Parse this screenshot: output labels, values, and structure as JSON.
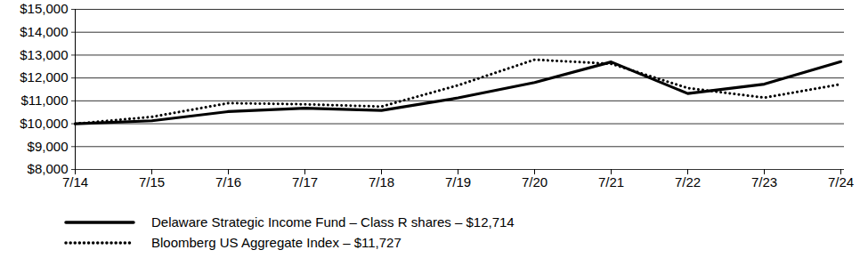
{
  "chart_data": {
    "type": "line",
    "categories": [
      "7/14",
      "7/15",
      "7/16",
      "7/17",
      "7/18",
      "7/19",
      "7/20",
      "7/21",
      "7/22",
      "7/23",
      "7/24"
    ],
    "series": [
      {
        "name": "Delaware Strategic Income Fund – Class R shares – $12,714",
        "color": "#000000",
        "line_style": "solid",
        "values": [
          10000,
          10130,
          10530,
          10680,
          10580,
          11130,
          11800,
          12700,
          11320,
          11730,
          12714
        ]
      },
      {
        "name": "Bloomberg US Aggregate Index – $11,727",
        "color": "#000000",
        "line_style": "dotted",
        "values": [
          10000,
          10300,
          10900,
          10850,
          10750,
          11680,
          12800,
          12620,
          11560,
          11140,
          11727
        ]
      }
    ],
    "ylim": [
      8000,
      15000
    ],
    "yticks": [
      {
        "value": 8000,
        "label": "$8,000"
      },
      {
        "value": 9000,
        "label": "$9,000"
      },
      {
        "value": 10000,
        "label": "$10,000"
      },
      {
        "value": 11000,
        "label": "$11,000"
      },
      {
        "value": 12000,
        "label": "$12,000"
      },
      {
        "value": 13000,
        "label": "$13,000"
      },
      {
        "value": 14000,
        "label": "$14,000"
      },
      {
        "value": 15000,
        "label": "$15,000"
      }
    ],
    "grid": true,
    "legend": "bottom"
  }
}
